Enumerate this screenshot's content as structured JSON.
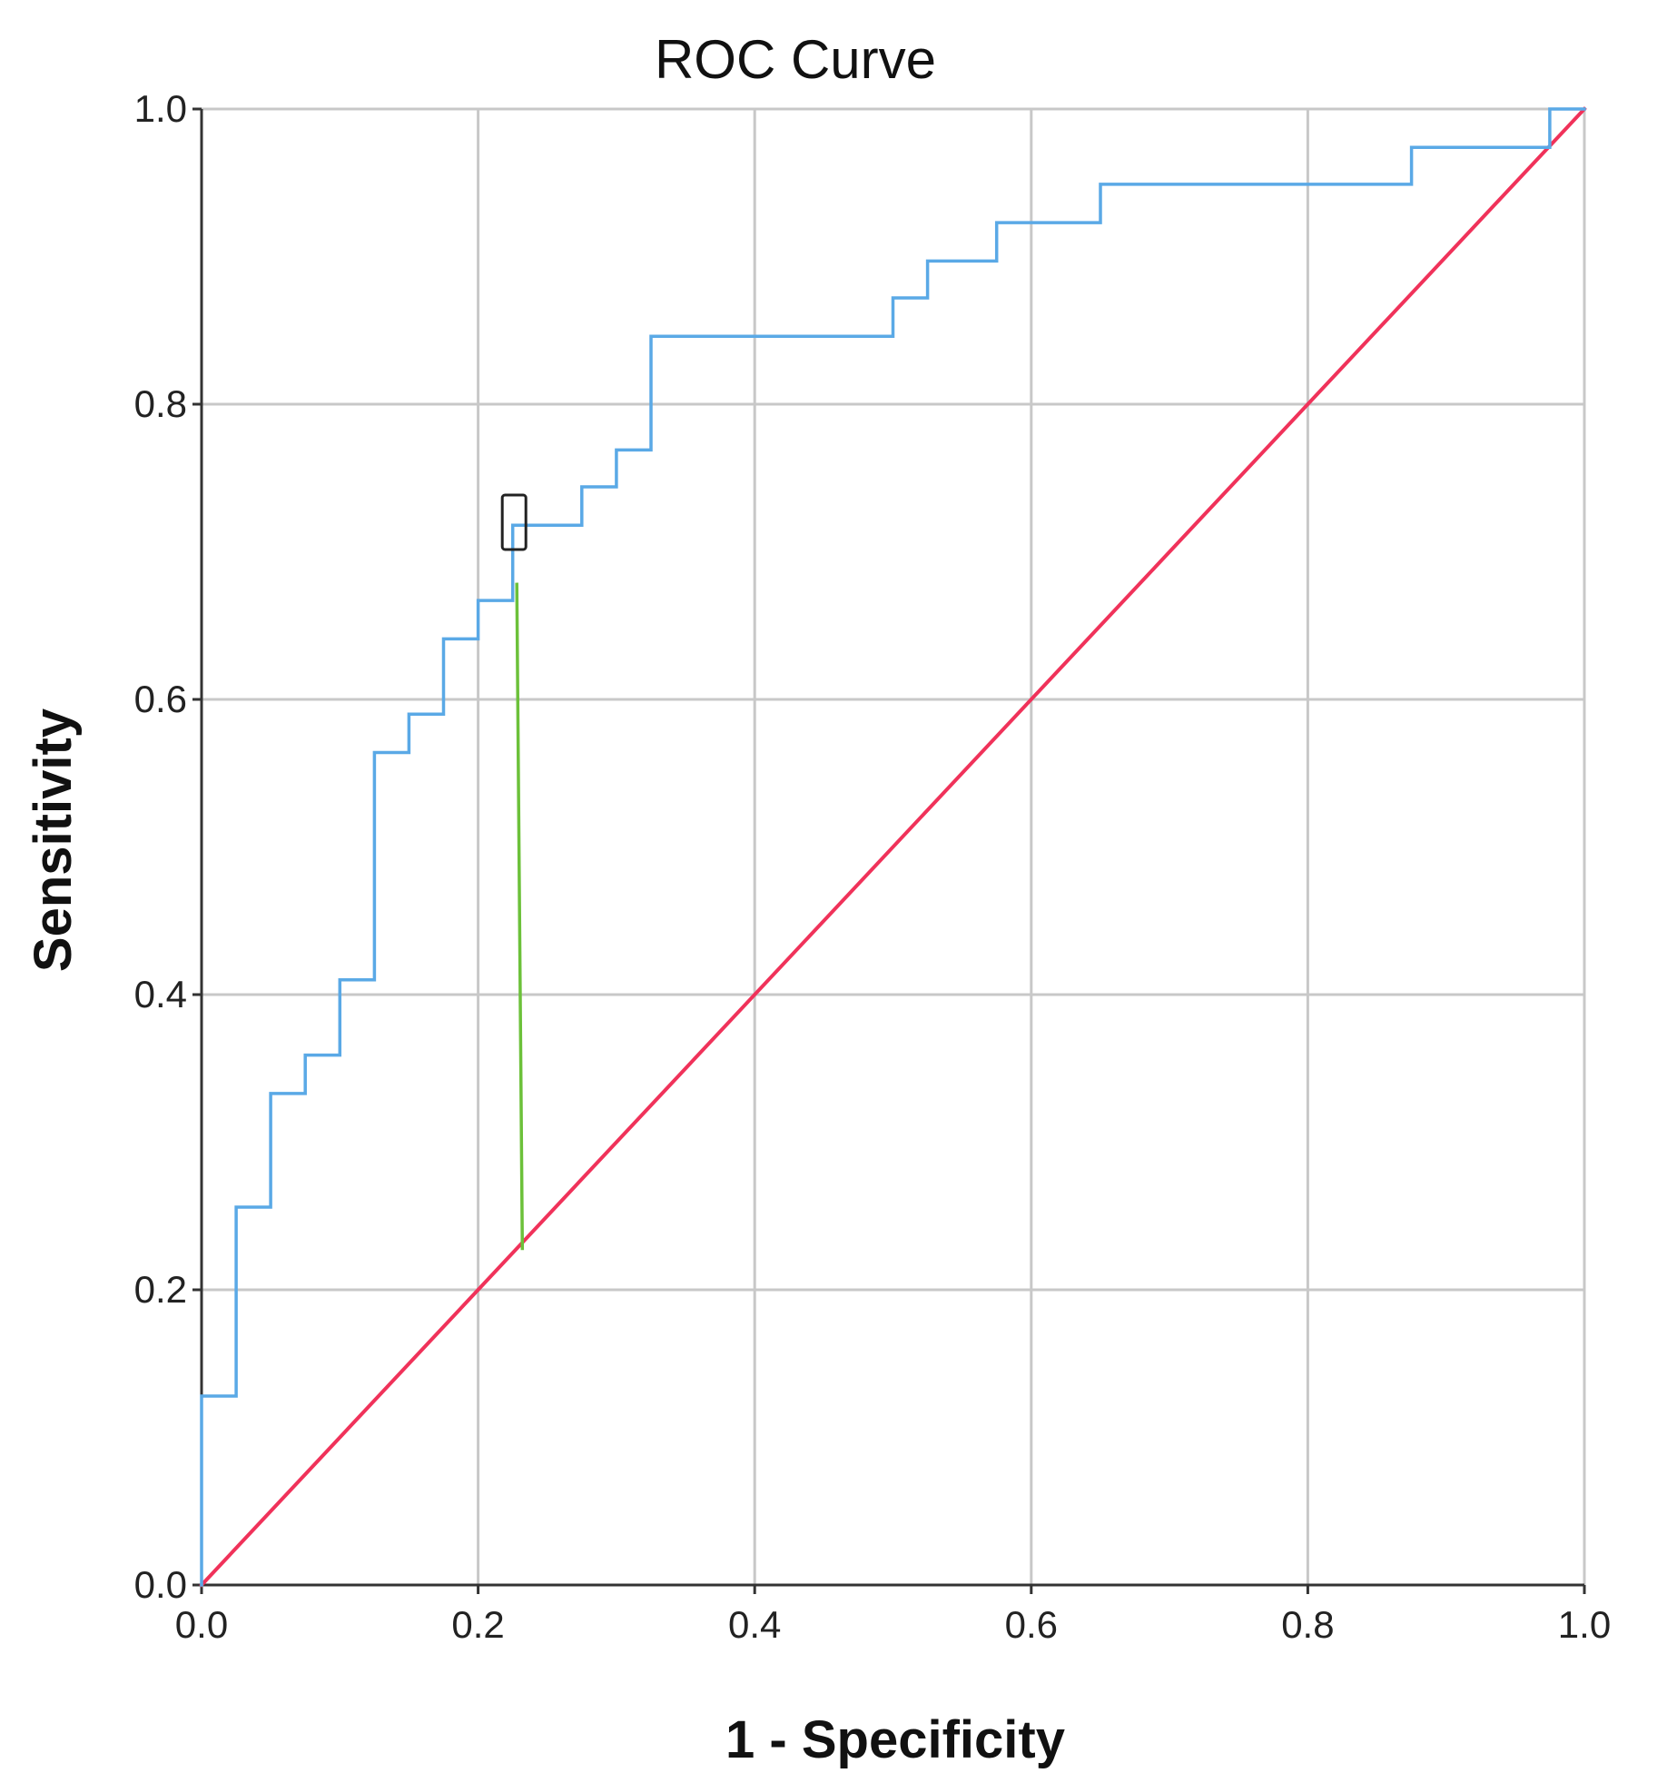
{
  "chart_data": {
    "type": "line",
    "title": "ROC Curve",
    "xlabel": "1 - Specificity",
    "ylabel": "Sensitivity",
    "xlim": [
      0,
      1
    ],
    "ylim": [
      0,
      1
    ],
    "grid": true,
    "x_ticks": [
      "0.0",
      "0.2",
      "0.4",
      "0.6",
      "0.8",
      "1.0"
    ],
    "y_ticks": [
      "0.0",
      "0.2",
      "0.4",
      "0.6",
      "0.8",
      "1.0"
    ],
    "colors": {
      "roc": "#5aa9e6",
      "reference": "#f0325a",
      "youden": "#6cc13a",
      "marker": "#222222"
    },
    "series": [
      {
        "kind": "roc-curve",
        "points": [
          [
            0.0,
            0.0
          ],
          [
            0.0,
            0.128
          ],
          [
            0.025,
            0.128
          ],
          [
            0.025,
            0.256
          ],
          [
            0.05,
            0.256
          ],
          [
            0.05,
            0.333
          ],
          [
            0.075,
            0.333
          ],
          [
            0.075,
            0.359
          ],
          [
            0.1,
            0.359
          ],
          [
            0.1,
            0.41
          ],
          [
            0.125,
            0.41
          ],
          [
            0.125,
            0.564
          ],
          [
            0.15,
            0.564
          ],
          [
            0.15,
            0.59
          ],
          [
            0.175,
            0.59
          ],
          [
            0.175,
            0.641
          ],
          [
            0.2,
            0.641
          ],
          [
            0.2,
            0.667
          ],
          [
            0.225,
            0.667
          ],
          [
            0.225,
            0.718
          ],
          [
            0.275,
            0.718
          ],
          [
            0.275,
            0.744
          ],
          [
            0.3,
            0.744
          ],
          [
            0.3,
            0.769
          ],
          [
            0.325,
            0.769
          ],
          [
            0.325,
            0.846
          ],
          [
            0.5,
            0.846
          ],
          [
            0.5,
            0.872
          ],
          [
            0.525,
            0.872
          ],
          [
            0.525,
            0.897
          ],
          [
            0.575,
            0.897
          ],
          [
            0.575,
            0.923
          ],
          [
            0.65,
            0.923
          ],
          [
            0.65,
            0.949
          ],
          [
            0.875,
            0.949
          ],
          [
            0.875,
            0.974
          ],
          [
            0.975,
            0.974
          ],
          [
            0.975,
            1.0
          ],
          [
            1.0,
            1.0
          ]
        ]
      },
      {
        "kind": "reference-line",
        "points": [
          [
            0.0,
            0.0
          ],
          [
            1.0,
            1.0
          ]
        ]
      },
      {
        "kind": "youden-line",
        "points": [
          [
            0.228,
            0.678
          ],
          [
            0.232,
            0.228
          ]
        ]
      }
    ],
    "annotations": [
      {
        "kind": "optimal-cutoff-marker",
        "x": 0.226,
        "y": 0.72
      }
    ]
  }
}
